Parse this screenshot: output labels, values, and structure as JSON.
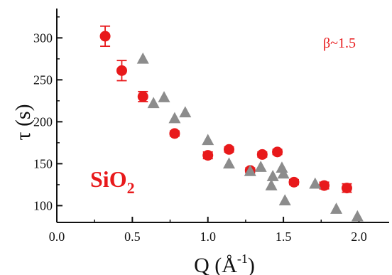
{
  "chart_data": {
    "type": "scatter",
    "title": "",
    "xlabel_main": "Q (Å",
    "xlabel_sup": "-1",
    "xlabel_close": ")",
    "ylabel": "τ (s)",
    "xlim": [
      0.0,
      2.2
    ],
    "ylim": [
      80,
      335
    ],
    "x_ticks": [
      "0.0",
      "0.5",
      "1.0",
      "1.5",
      "2.0"
    ],
    "x_tick_values": [
      0.0,
      0.5,
      1.0,
      1.5,
      2.0
    ],
    "y_ticks": [
      "100",
      "150",
      "200",
      "250",
      "300"
    ],
    "y_tick_values": [
      100,
      150,
      200,
      250,
      300
    ],
    "grid": false,
    "annotations": {
      "beta": "β~1.5",
      "material_main": "SiO",
      "material_sub": "2"
    },
    "colors": {
      "red": "#e8191b",
      "gray": "#8c8c8c",
      "axis": "#111111"
    },
    "series": [
      {
        "marker": "circle",
        "color": "#e8191b",
        "points": [
          {
            "x": 0.32,
            "y": 302,
            "err": 12
          },
          {
            "x": 0.43,
            "y": 261,
            "err": 12
          },
          {
            "x": 0.57,
            "y": 230,
            "err": 6
          },
          {
            "x": 0.78,
            "y": 186,
            "err": 3
          },
          {
            "x": 1.0,
            "y": 160,
            "err": 4
          },
          {
            "x": 1.14,
            "y": 167,
            "err": 3
          },
          {
            "x": 1.28,
            "y": 142,
            "err": 3
          },
          {
            "x": 1.36,
            "y": 161,
            "err": 3
          },
          {
            "x": 1.46,
            "y": 164,
            "err": 3
          },
          {
            "x": 1.57,
            "y": 128,
            "err": 3
          },
          {
            "x": 1.77,
            "y": 124,
            "err": 4
          },
          {
            "x": 1.92,
            "y": 121,
            "err": 5
          }
        ]
      },
      {
        "marker": "triangle",
        "color": "#8c8c8c",
        "points": [
          {
            "x": 0.57,
            "y": 275
          },
          {
            "x": 0.64,
            "y": 222
          },
          {
            "x": 0.71,
            "y": 229
          },
          {
            "x": 0.78,
            "y": 204
          },
          {
            "x": 0.85,
            "y": 211
          },
          {
            "x": 1.0,
            "y": 178
          },
          {
            "x": 1.14,
            "y": 150
          },
          {
            "x": 1.28,
            "y": 141
          },
          {
            "x": 1.35,
            "y": 146
          },
          {
            "x": 1.42,
            "y": 124
          },
          {
            "x": 1.43,
            "y": 135
          },
          {
            "x": 1.49,
            "y": 145
          },
          {
            "x": 1.5,
            "y": 138
          },
          {
            "x": 1.51,
            "y": 106
          },
          {
            "x": 1.71,
            "y": 126
          },
          {
            "x": 1.85,
            "y": 96
          },
          {
            "x": 1.99,
            "y": 87
          }
        ]
      }
    ]
  }
}
